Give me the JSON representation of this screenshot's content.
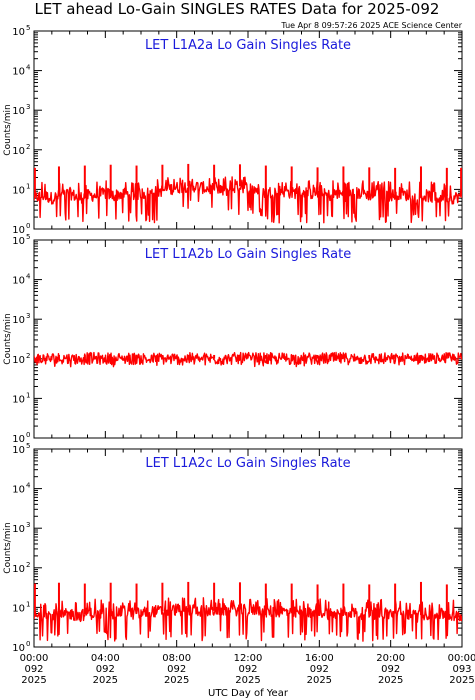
{
  "title": "LET ahead Lo-Gain SINGLES RATES Data for 2025-092",
  "timestamp": "Tue Apr  8 09:57:26 2025 ACE Science Center",
  "x_axis_label": "UTC Day of Year",
  "y_axis_label": "Counts/min",
  "colors": {
    "series": "#ff0000",
    "panel_title": "#1a1adb",
    "axes": "#000000"
  },
  "chart_data": [
    {
      "type": "line",
      "title": "LET L1A2a Lo Gain Singles Rate",
      "ylabel": "Counts/min",
      "yscale": "log",
      "ylim": [
        1,
        100000
      ],
      "xlim": [
        0,
        24
      ],
      "y_ticks": [
        {
          "base": "10",
          "exp": "0"
        },
        {
          "base": "10",
          "exp": "1"
        },
        {
          "base": "10",
          "exp": "2"
        },
        {
          "base": "10",
          "exp": "3"
        },
        {
          "base": "10",
          "exp": "4"
        },
        {
          "base": "10",
          "exp": "5"
        }
      ],
      "series": [
        {
          "color": "#ff0000",
          "x": [
            0,
            0.5,
            1,
            1.5,
            2,
            2.5,
            3,
            3.5,
            4,
            4.5,
            5,
            5.5,
            6,
            6.5,
            7,
            7.5,
            8,
            8.5,
            9,
            9.5,
            10,
            10.5,
            11,
            11.5,
            12,
            12.5,
            13,
            13.5,
            14,
            14.5,
            15,
            15.5,
            16,
            16.5,
            17,
            17.5,
            18,
            18.5,
            19,
            19.5,
            20,
            20.5,
            21,
            21.5,
            22,
            22.5,
            23,
            23.5,
            24
          ],
          "y": [
            6,
            7,
            6,
            7,
            8,
            6,
            7,
            7,
            8,
            7,
            8,
            7,
            8,
            8,
            9,
            10,
            11,
            12,
            12,
            11,
            10,
            9,
            10,
            12,
            11,
            10,
            8,
            9,
            9,
            8,
            9,
            8,
            8,
            7,
            8,
            7,
            8,
            8,
            7,
            8,
            7,
            8,
            7,
            6,
            7,
            6,
            7,
            6,
            7
          ],
          "y_min": [
            2,
            2,
            2,
            2,
            2,
            2,
            2,
            2,
            2,
            2,
            2,
            2,
            2,
            2,
            2,
            3,
            4,
            4,
            5,
            4,
            4,
            3,
            3,
            3,
            3,
            3,
            2,
            2,
            2,
            2,
            2,
            2,
            2,
            2,
            2,
            2,
            2,
            2,
            2,
            2,
            2,
            2,
            2,
            2,
            2,
            2,
            2,
            2,
            2
          ],
          "y_max": [
            14,
            14,
            15,
            14,
            15,
            14,
            14,
            14,
            16,
            15,
            15,
            14,
            16,
            16,
            17,
            18,
            20,
            20,
            20,
            19,
            18,
            18,
            20,
            20,
            19,
            18,
            16,
            16,
            16,
            15,
            16,
            15,
            15,
            15,
            16,
            15,
            16,
            15,
            15,
            15,
            15,
            16,
            15,
            14,
            15,
            14,
            15,
            14,
            15
          ],
          "spikes_x": [
            0.05,
            1.4,
            2.85,
            4.3,
            5.75,
            7.2,
            8.65,
            10.1,
            11.55,
            13.0,
            14.45,
            15.9,
            17.35,
            18.8,
            20.25,
            21.7,
            23.15,
            23.95
          ],
          "spikes_y": [
            35,
            38,
            40,
            42,
            40,
            42,
            44,
            42,
            43,
            40,
            38,
            36,
            38,
            36,
            35,
            38,
            35,
            35
          ]
        }
      ]
    },
    {
      "type": "line",
      "title": "LET L1A2b Lo Gain Singles Rate",
      "ylabel": "Counts/min",
      "yscale": "log",
      "ylim": [
        1,
        100000
      ],
      "xlim": [
        0,
        24
      ],
      "y_ticks": [
        {
          "base": "10",
          "exp": "0"
        },
        {
          "base": "10",
          "exp": "1"
        },
        {
          "base": "10",
          "exp": "2"
        },
        {
          "base": "10",
          "exp": "3"
        },
        {
          "base": "10",
          "exp": "4"
        },
        {
          "base": "10",
          "exp": "5"
        }
      ],
      "series": [
        {
          "color": "#ff0000",
          "x": [
            0,
            1,
            2,
            3,
            4,
            5,
            6,
            7,
            8,
            9,
            10,
            11,
            12,
            13,
            14,
            15,
            16,
            17,
            18,
            19,
            20,
            21,
            22,
            23,
            24
          ],
          "y": [
            100,
            101,
            100,
            102,
            101,
            100,
            102,
            101,
            100,
            101,
            100,
            101,
            102,
            100,
            101,
            100,
            101,
            102,
            100,
            101,
            100,
            101,
            100,
            101,
            100
          ],
          "y_min": [
            90,
            91,
            90,
            92,
            91,
            90,
            92,
            91,
            90,
            91,
            90,
            91,
            92,
            90,
            91,
            90,
            91,
            92,
            90,
            91,
            90,
            91,
            90,
            91,
            90
          ],
          "y_max": [
            112,
            113,
            112,
            114,
            113,
            112,
            114,
            113,
            112,
            113,
            112,
            113,
            114,
            112,
            113,
            112,
            113,
            114,
            112,
            113,
            112,
            113,
            112,
            113,
            112
          ],
          "spikes_x": [
            1.4,
            2.85,
            4.3,
            5.75,
            7.2,
            8.65,
            10.1,
            11.55,
            13.0,
            14.45,
            15.9,
            17.35,
            18.8,
            20.25,
            21.7,
            23.15
          ],
          "spikes_y": [
            125,
            126,
            125,
            127,
            125,
            126,
            125,
            127,
            125,
            126,
            125,
            126,
            125,
            127,
            125,
            126
          ]
        }
      ]
    },
    {
      "type": "line",
      "title": "LET L1A2c Lo Gain Singles Rate",
      "ylabel": "Counts/min",
      "yscale": "log",
      "ylim": [
        1,
        100000
      ],
      "xlim": [
        0,
        24
      ],
      "y_ticks": [
        {
          "base": "10",
          "exp": "0"
        },
        {
          "base": "10",
          "exp": "1"
        },
        {
          "base": "10",
          "exp": "2"
        },
        {
          "base": "10",
          "exp": "3"
        },
        {
          "base": "10",
          "exp": "4"
        },
        {
          "base": "10",
          "exp": "5"
        }
      ],
      "series": [
        {
          "color": "#ff0000",
          "x": [
            0,
            0.5,
            1,
            1.5,
            2,
            2.5,
            3,
            3.5,
            4,
            4.5,
            5,
            5.5,
            6,
            6.5,
            7,
            7.5,
            8,
            8.5,
            9,
            9.5,
            10,
            10.5,
            11,
            11.5,
            12,
            12.5,
            13,
            13.5,
            14,
            14.5,
            15,
            15.5,
            16,
            16.5,
            17,
            17.5,
            18,
            18.5,
            19,
            19.5,
            20,
            20.5,
            21,
            21.5,
            22,
            22.5,
            23,
            23.5,
            24
          ],
          "y": [
            6,
            6,
            7,
            6,
            7,
            6,
            7,
            7,
            7,
            7,
            8,
            7,
            7,
            8,
            8,
            8,
            9,
            8,
            9,
            8,
            8,
            9,
            8,
            9,
            8,
            9,
            8,
            8,
            8,
            7,
            8,
            7,
            8,
            7,
            7,
            8,
            7,
            7,
            7,
            7,
            7,
            7,
            7,
            6,
            7,
            6,
            7,
            6,
            6
          ],
          "y_min": [
            2,
            2,
            2,
            2,
            2,
            2,
            2,
            2,
            2,
            2,
            2,
            2,
            2,
            2,
            2,
            2,
            2,
            2,
            2,
            2,
            2,
            2,
            2,
            2,
            2,
            2,
            2,
            2,
            2,
            2,
            2,
            2,
            2,
            2,
            2,
            2,
            2,
            2,
            2,
            2,
            2,
            2,
            2,
            2,
            2,
            2,
            2,
            2,
            2
          ],
          "y_max": [
            14,
            14,
            14,
            14,
            14,
            14,
            14,
            15,
            14,
            15,
            15,
            14,
            15,
            15,
            15,
            16,
            16,
            16,
            16,
            16,
            15,
            16,
            15,
            16,
            16,
            16,
            15,
            15,
            15,
            15,
            15,
            15,
            15,
            15,
            15,
            15,
            14,
            15,
            14,
            15,
            14,
            15,
            14,
            14,
            14,
            14,
            14,
            14,
            14
          ],
          "spikes_x": [
            0.05,
            1.4,
            2.85,
            4.3,
            5.75,
            7.2,
            8.65,
            10.1,
            11.55,
            13.0,
            14.45,
            15.9,
            17.35,
            18.8,
            20.25,
            21.7,
            23.15
          ],
          "spikes_y": [
            40,
            42,
            40,
            42,
            40,
            42,
            44,
            42,
            43,
            40,
            40,
            38,
            40,
            38,
            40,
            44,
            38
          ]
        }
      ]
    }
  ],
  "x_ticks": [
    {
      "time": "00:00",
      "doy": "092",
      "year": "2025",
      "hour": 0
    },
    {
      "time": "04:00",
      "doy": "092",
      "year": "2025",
      "hour": 4
    },
    {
      "time": "08:00",
      "doy": "092",
      "year": "2025",
      "hour": 8
    },
    {
      "time": "12:00",
      "doy": "092",
      "year": "2025",
      "hour": 12
    },
    {
      "time": "16:00",
      "doy": "092",
      "year": "2025",
      "hour": 16
    },
    {
      "time": "20:00",
      "doy": "092",
      "year": "2025",
      "hour": 20
    },
    {
      "time": "00:00",
      "doy": "093",
      "year": "2025",
      "hour": 24
    }
  ]
}
